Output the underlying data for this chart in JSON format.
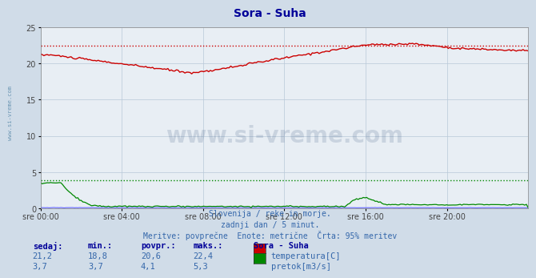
{
  "title": "Sora - Suha",
  "bg_color": "#d0dce8",
  "plot_bg_color": "#e8eef4",
  "grid_color": "#b8c8d8",
  "x_labels": [
    "sre 00:00",
    "sre 04:00",
    "sre 08:00",
    "sre 12:00",
    "sre 16:00",
    "sre 20:00"
  ],
  "y_ticks": [
    0,
    5,
    10,
    15,
    20,
    25
  ],
  "y_max": 25,
  "y_min": 0,
  "temp_color": "#cc0000",
  "flow_color": "#008800",
  "height_color": "#6666ff",
  "temp_max_line": 22.5,
  "flow_max_line": 3.9,
  "subtitle1": "Slovenija / reke in morje.",
  "subtitle2": "zadnji dan / 5 minut.",
  "subtitle3": "Meritve: povprečne  Enote: metrične  Črta: 95% meritev",
  "legend_title": "Sora - Suha",
  "table_headers": [
    "sedaj:",
    "min.:",
    "povpr.:",
    "maks.:"
  ],
  "temp_row": [
    "21,2",
    "18,8",
    "20,6",
    "22,4"
  ],
  "flow_row": [
    "3,7",
    "3,7",
    "4,1",
    "5,3"
  ],
  "temp_label": "temperatura[C]",
  "flow_label": "pretok[m3/s]",
  "watermark_text": "www.si-vreme.com",
  "watermark_color": "#1a3a6a",
  "side_text": "www.si-vreme.com",
  "side_color": "#5a8aaa"
}
